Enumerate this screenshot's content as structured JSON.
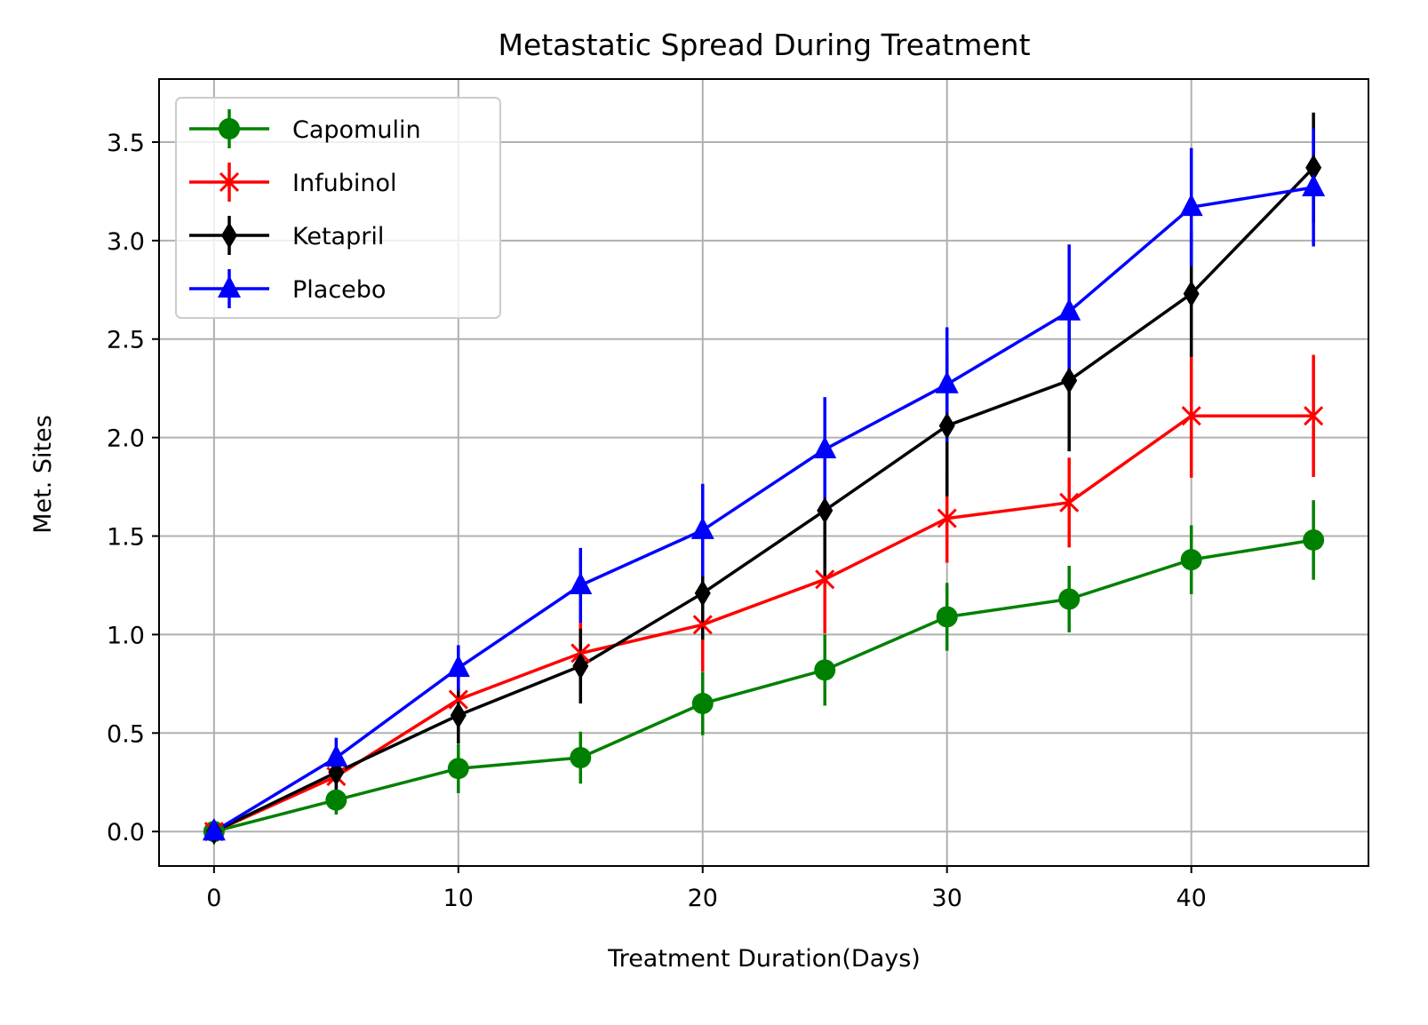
{
  "chart_data": {
    "type": "line",
    "title": "Metastatic Spread During Treatment",
    "xlabel": "Treatment Duration(Days)",
    "ylabel": "Met. Sites",
    "xlim": [
      -2.25,
      47.25
    ],
    "ylim": [
      -0.175,
      3.82
    ],
    "x": [
      0,
      5,
      10,
      15,
      20,
      25,
      30,
      35,
      40,
      45
    ],
    "x_ticks": [
      "0",
      "10",
      "20",
      "30",
      "40"
    ],
    "y_ticks": [
      "0.0",
      "0.5",
      "1.0",
      "1.5",
      "2.0",
      "2.5",
      "3.0",
      "3.5"
    ],
    "grid": true,
    "legend_position": "upper-left",
    "series": [
      {
        "name": "Capomulin",
        "color": "#008000",
        "marker": "circle",
        "values": [
          0.0,
          0.16,
          0.32,
          0.375,
          0.65,
          0.82,
          1.09,
          1.18,
          1.38,
          1.48
        ],
        "errors": [
          0.0,
          0.074,
          0.125,
          0.132,
          0.161,
          0.181,
          0.172,
          0.169,
          0.175,
          0.202
        ]
      },
      {
        "name": "Infubinol",
        "color": "#ff0000",
        "marker": "x",
        "values": [
          0.0,
          0.28,
          0.67,
          0.905,
          1.05,
          1.28,
          1.59,
          1.67,
          2.11,
          2.11
        ],
        "errors": [
          0.0,
          0.091,
          0.16,
          0.164,
          0.237,
          0.275,
          0.225,
          0.228,
          0.314,
          0.31
        ]
      },
      {
        "name": "Ketapril",
        "color": "#000000",
        "marker": "thin-diamond",
        "values": [
          0.0,
          0.3,
          0.59,
          0.84,
          1.21,
          1.63,
          2.06,
          2.29,
          2.73,
          3.37
        ],
        "errors": [
          0.0,
          0.099,
          0.143,
          0.19,
          0.236,
          0.333,
          0.358,
          0.36,
          0.32,
          0.28
        ]
      },
      {
        "name": "Placebo",
        "color": "#0000ff",
        "marker": "triangle-up",
        "values": [
          0.0,
          0.375,
          0.83,
          1.25,
          1.53,
          1.94,
          2.27,
          2.64,
          3.17,
          3.27
        ],
        "errors": [
          0.0,
          0.101,
          0.116,
          0.19,
          0.235,
          0.265,
          0.29,
          0.34,
          0.3,
          0.3
        ]
      }
    ]
  }
}
